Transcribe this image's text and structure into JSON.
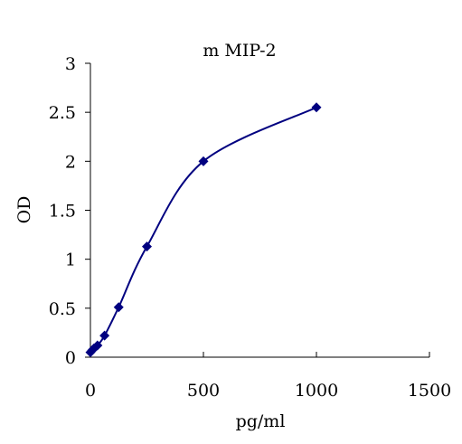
{
  "chart_data": {
    "type": "scatter",
    "title": "m MIP-2",
    "xlabel": "pg/ml",
    "ylabel": "OD",
    "xlim": [
      0,
      1500
    ],
    "ylim": [
      0,
      3
    ],
    "x_ticks": [
      {
        "value": 0,
        "label": "0"
      },
      {
        "value": 500,
        "label": "500"
      },
      {
        "value": 1000,
        "label": "1000"
      },
      {
        "value": 1500,
        "label": "1500"
      }
    ],
    "y_ticks": [
      {
        "value": 0,
        "label": "0"
      },
      {
        "value": 0.5,
        "label": "0.5"
      },
      {
        "value": 1,
        "label": "1"
      },
      {
        "value": 1.5,
        "label": "1.5"
      },
      {
        "value": 2,
        "label": "2"
      },
      {
        "value": 2.5,
        "label": "2.5"
      },
      {
        "value": 3,
        "label": "3"
      }
    ],
    "grid": false,
    "smoothed_line": true,
    "marker": "diamond",
    "series_color": "#000080",
    "series": [
      {
        "points": [
          {
            "x": 0,
            "y": 0.05
          },
          {
            "x": 7.8,
            "y": 0.07
          },
          {
            "x": 15.6,
            "y": 0.09
          },
          {
            "x": 31.25,
            "y": 0.12
          },
          {
            "x": 62.5,
            "y": 0.22
          },
          {
            "x": 125,
            "y": 0.51
          },
          {
            "x": 250,
            "y": 1.13
          },
          {
            "x": 500,
            "y": 2.0
          },
          {
            "x": 1000,
            "y": 2.55
          }
        ]
      }
    ]
  }
}
